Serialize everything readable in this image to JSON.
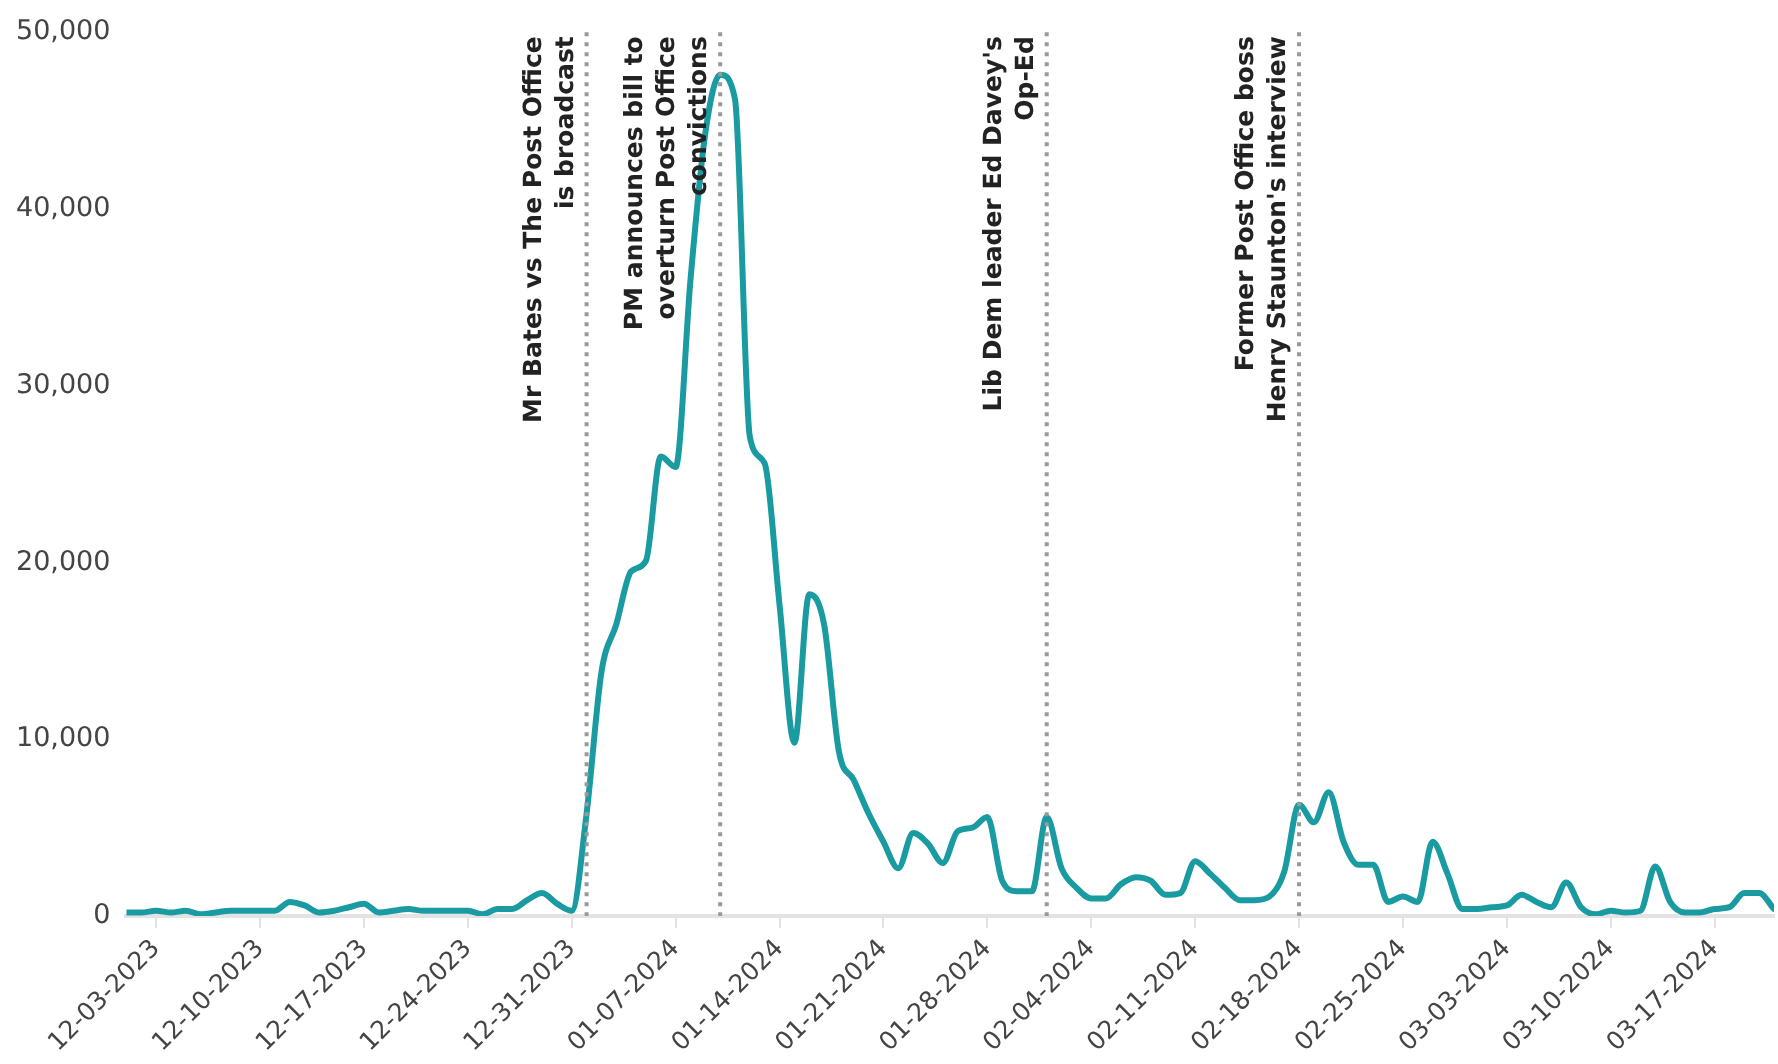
{
  "chart_data": {
    "type": "line",
    "x": [
      "2023-12-01",
      "2023-12-02",
      "2023-12-03",
      "2023-12-04",
      "2023-12-05",
      "2023-12-06",
      "2023-12-07",
      "2023-12-08",
      "2023-12-09",
      "2023-12-10",
      "2023-12-11",
      "2023-12-12",
      "2023-12-13",
      "2023-12-14",
      "2023-12-15",
      "2023-12-16",
      "2023-12-17",
      "2023-12-18",
      "2023-12-19",
      "2023-12-20",
      "2023-12-21",
      "2023-12-22",
      "2023-12-23",
      "2023-12-24",
      "2023-12-25",
      "2023-12-26",
      "2023-12-27",
      "2023-12-28",
      "2023-12-29",
      "2023-12-30",
      "2023-12-31",
      "2024-01-01",
      "2024-01-02",
      "2024-01-03",
      "2024-01-04",
      "2024-01-05",
      "2024-01-06",
      "2024-01-07",
      "2024-01-08",
      "2024-01-09",
      "2024-01-10",
      "2024-01-11",
      "2024-01-12",
      "2024-01-13",
      "2024-01-14",
      "2024-01-15",
      "2024-01-16",
      "2024-01-17",
      "2024-01-18",
      "2024-01-19",
      "2024-01-20",
      "2024-01-21",
      "2024-01-22",
      "2024-01-23",
      "2024-01-24",
      "2024-01-25",
      "2024-01-26",
      "2024-01-27",
      "2024-01-28",
      "2024-01-29",
      "2024-01-30",
      "2024-01-31",
      "2024-02-01",
      "2024-02-02",
      "2024-02-03",
      "2024-02-04",
      "2024-02-05",
      "2024-02-06",
      "2024-02-07",
      "2024-02-08",
      "2024-02-09",
      "2024-02-10",
      "2024-02-11",
      "2024-02-12",
      "2024-02-13",
      "2024-02-14",
      "2024-02-15",
      "2024-02-16",
      "2024-02-17",
      "2024-02-18",
      "2024-02-19",
      "2024-02-20",
      "2024-02-21",
      "2024-02-22",
      "2024-02-23",
      "2024-02-24",
      "2024-02-25",
      "2024-02-26",
      "2024-02-27",
      "2024-02-28",
      "2024-02-29",
      "2024-03-01",
      "2024-03-02",
      "2024-03-03",
      "2024-03-04",
      "2024-03-05",
      "2024-03-06",
      "2024-03-07",
      "2024-03-08",
      "2024-03-09",
      "2024-03-10",
      "2024-03-11",
      "2024-03-12",
      "2024-03-13",
      "2024-03-14",
      "2024-03-15",
      "2024-03-16",
      "2024-03-17",
      "2024-03-18",
      "2024-03-19",
      "2024-03-20",
      "2024-03-21"
    ],
    "series": [
      {
        "color": "#1a9ba1",
        "values": [
          200,
          200,
          300,
          200,
          300,
          100,
          200,
          300,
          300,
          300,
          300,
          800,
          600,
          200,
          300,
          500,
          700,
          200,
          300,
          400,
          300,
          300,
          300,
          300,
          100,
          400,
          400,
          900,
          1300,
          700,
          300,
          5800,
          13800,
          16500,
          19500,
          20100,
          26000,
          25400,
          36000,
          44300,
          47600,
          46200,
          27100,
          25600,
          17600,
          9800,
          18200,
          16500,
          9300,
          7700,
          5800,
          4200,
          2700,
          4700,
          4100,
          3000,
          4800,
          5000,
          5600,
          2000,
          1400,
          1400,
          5600,
          2700,
          1600,
          1000,
          1000,
          1800,
          2200,
          2000,
          1200,
          1300,
          3100,
          2400,
          1600,
          900,
          900,
          1100,
          2500,
          6300,
          5300,
          7000,
          4200,
          2900,
          2900,
          800,
          1100,
          800,
          4200,
          2400,
          400,
          400,
          500,
          600,
          1200,
          800,
          500,
          1900,
          500,
          100,
          300,
          200,
          300,
          2800,
          800,
          200,
          200,
          400,
          500,
          1300,
          1300,
          400
        ]
      }
    ],
    "xlim": [
      "2023-12-01",
      "2024-03-21"
    ],
    "xticks": [
      {
        "value": "2023-12-03",
        "label": "12-03-2023"
      },
      {
        "value": "2023-12-10",
        "label": "12-10-2023"
      },
      {
        "value": "2023-12-17",
        "label": "12-17-2023"
      },
      {
        "value": "2023-12-24",
        "label": "12-24-2023"
      },
      {
        "value": "2023-12-31",
        "label": "12-31-2023"
      },
      {
        "value": "2024-01-07",
        "label": "01-07-2024"
      },
      {
        "value": "2024-01-14",
        "label": "01-14-2024"
      },
      {
        "value": "2024-01-21",
        "label": "01-21-2024"
      },
      {
        "value": "2024-01-28",
        "label": "01-28-2024"
      },
      {
        "value": "2024-02-04",
        "label": "02-04-2024"
      },
      {
        "value": "2024-02-11",
        "label": "02-11-2024"
      },
      {
        "value": "2024-02-18",
        "label": "02-18-2024"
      },
      {
        "value": "2024-02-25",
        "label": "02-25-2024"
      },
      {
        "value": "2024-03-03",
        "label": "03-03-2024"
      },
      {
        "value": "2024-03-10",
        "label": "03-10-2024"
      },
      {
        "value": "2024-03-17",
        "label": "03-17-2024"
      }
    ],
    "ylim": [
      0,
      50000
    ],
    "yticks": [
      {
        "value": 0,
        "label": "0"
      },
      {
        "value": 10000,
        "label": "10,000"
      },
      {
        "value": 20000,
        "label": "20,000"
      },
      {
        "value": 30000,
        "label": "30,000"
      },
      {
        "value": 40000,
        "label": "40,000"
      },
      {
        "value": 50000,
        "label": "50,000"
      }
    ],
    "ref_lines": [
      {
        "axis": "x",
        "value": "2024-01-01",
        "label": "Mr Bates vs The Post Office is broadcast",
        "color": "#999999",
        "line_style": "dotted"
      },
      {
        "axis": "x",
        "value": "2024-01-10",
        "label": "PM announces bill to overturn Post Office convictions",
        "color": "#999999",
        "line_style": "dotted"
      },
      {
        "axis": "x",
        "value": "2024-02-01",
        "label": "Lib Dem leader Ed Davey's Op-Ed",
        "color": "#999999",
        "line_style": "dotted"
      },
      {
        "axis": "x",
        "value": "2024-02-18",
        "label": "Former Post Office boss Henry Staunton's interview",
        "color": "#999999",
        "line_style": "dotted"
      }
    ],
    "grid": false,
    "legend": false,
    "marker": "none",
    "line_style": "solid"
  }
}
